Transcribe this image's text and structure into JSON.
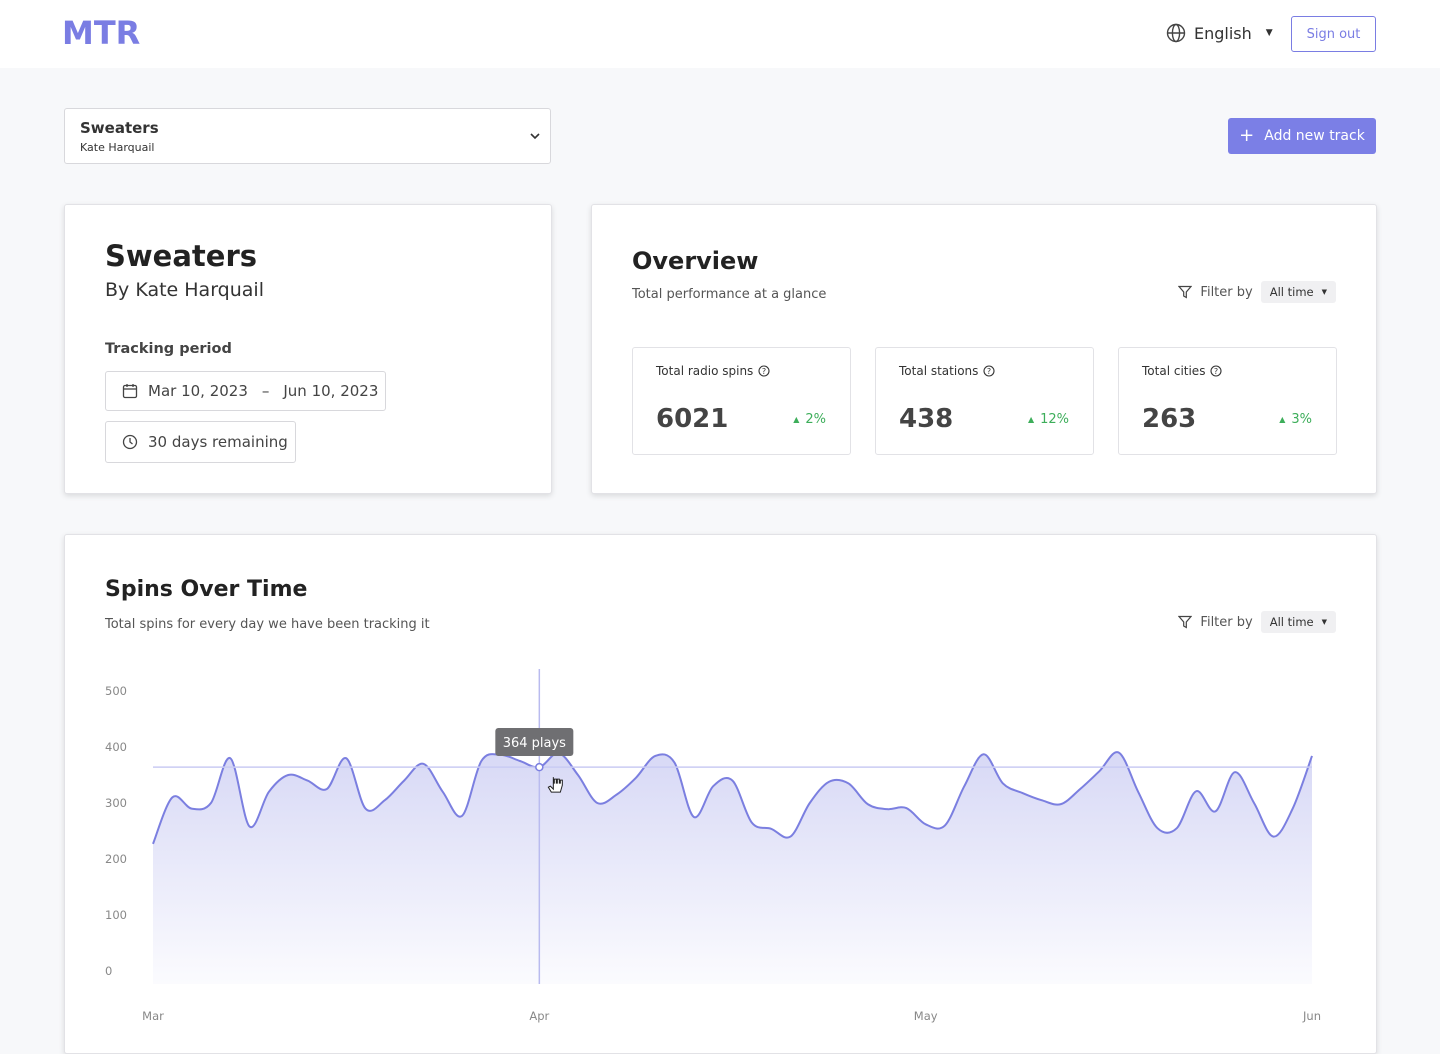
{
  "header": {
    "logo": "MTR",
    "language": "English",
    "sign_out": "Sign out"
  },
  "track_select": {
    "title": "Sweaters",
    "artist": "Kate Harquail"
  },
  "add_button": "Add new track",
  "track_card": {
    "title": "Sweaters",
    "artist": "By Kate Harquail",
    "tracking_label": "Tracking period",
    "start": "Mar 10, 2023",
    "separator": "–",
    "end": "Jun 10, 2023",
    "remaining": "30 days remaining"
  },
  "overview": {
    "title": "Overview",
    "subtitle": "Total performance at a glance",
    "filter_label": "Filter by",
    "filter_value": "All time",
    "stats": [
      {
        "label": "Total radio spins",
        "value": 6021,
        "change": "2%"
      },
      {
        "label": "Total stations",
        "value": 438,
        "change": "12%"
      },
      {
        "label": "Total cities",
        "value": 263,
        "change": "3%"
      }
    ]
  },
  "chart_data": {
    "type": "line",
    "title": "Spins Over Time",
    "subtitle": "Total spins for every day we have been tracking it",
    "filter_label": "Filter by",
    "filter_value": "All time",
    "categories": [
      "Mar",
      null,
      null,
      null,
      null,
      null,
      null,
      null,
      null,
      null,
      null,
      null,
      null,
      null,
      null,
      null,
      null,
      null,
      null,
      null,
      "Apr",
      null,
      null,
      null,
      null,
      null,
      null,
      null,
      null,
      null,
      null,
      null,
      null,
      null,
      null,
      null,
      null,
      null,
      null,
      null,
      "May",
      null,
      null,
      null,
      null,
      null,
      null,
      null,
      null,
      null,
      null,
      null,
      null,
      null,
      null,
      null,
      null,
      null,
      null,
      null,
      "Jun"
    ],
    "values": [
      227,
      310,
      290,
      300,
      380,
      258,
      320,
      350,
      340,
      325,
      380,
      290,
      305,
      340,
      370,
      320,
      277,
      375,
      386,
      375,
      364,
      389,
      350,
      300,
      315,
      345,
      384,
      372,
      275,
      330,
      340,
      265,
      254,
      240,
      300,
      338,
      335,
      298,
      289,
      291,
      262,
      260,
      330,
      387,
      335,
      318,
      305,
      298,
      325,
      357,
      390,
      320,
      255,
      255,
      321,
      285,
      355,
      300,
      240,
      290,
      384
    ],
    "value_labels": [
      null,
      null,
      null,
      null,
      null,
      null,
      null,
      null,
      null,
      null,
      null,
      null,
      null,
      null,
      null,
      null,
      null,
      null,
      null,
      null,
      "364 plays",
      null,
      null,
      null,
      null,
      null,
      null,
      null,
      null,
      null,
      null,
      null,
      null,
      null,
      null,
      null,
      null,
      null,
      null,
      null,
      null,
      null,
      null,
      null,
      null,
      null,
      null,
      null,
      null,
      null,
      null,
      null,
      null,
      null,
      null,
      null,
      null,
      null,
      null,
      null,
      null
    ],
    "color": "#7b7fe0",
    "ylim": [
      0,
      500
    ],
    "yticks": [
      0,
      100,
      200,
      300,
      400,
      500
    ]
  }
}
